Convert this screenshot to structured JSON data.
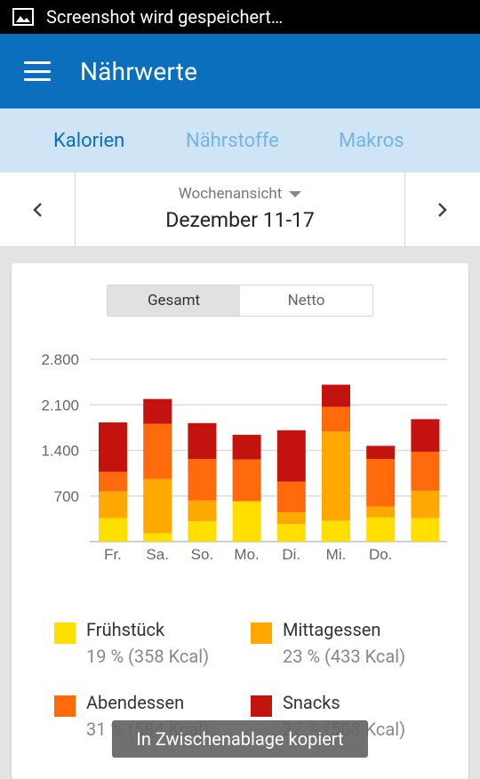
{
  "status_bar": {
    "text": "Screenshot wird gespeichert…",
    "icon": "image-icon"
  },
  "app_bar": {
    "title": "Nährwerte",
    "menu_icon": "hamburger-menu-icon"
  },
  "tabs": [
    {
      "label": "Kalorien",
      "active": true
    },
    {
      "label": "Nährstoffe",
      "active": false
    },
    {
      "label": "Makros",
      "active": false
    }
  ],
  "date_nav": {
    "view_label": "Wochenansicht",
    "range": "Dezember 11-17"
  },
  "toggle": {
    "options": [
      "Gesamt",
      "Netto"
    ],
    "selected": "Gesamt"
  },
  "colors": {
    "fruehstueck": "#ffde00",
    "mittagessen": "#ffa800",
    "abendessen": "#ff6a0c",
    "snacks": "#c4120f",
    "accent": "#0b6fbd"
  },
  "chart_data": {
    "type": "bar",
    "stacked": true,
    "categories": [
      "Fr.",
      "Sa.",
      "So.",
      "Mo.",
      "Di.",
      "Mi.",
      "Do.",
      ""
    ],
    "y_ticks": [
      "2.800",
      "2.100",
      "1.400",
      "700"
    ],
    "ylim": [
      0,
      2800
    ],
    "series": [
      {
        "name": "Frühstück",
        "color": "#ffde00",
        "values": [
          360,
          130,
          310,
          620,
          270,
          320,
          370,
          360
        ]
      },
      {
        "name": "Mittagessen",
        "color": "#ffa800",
        "values": [
          410,
          830,
          320,
          0,
          180,
          1370,
          170,
          420
        ]
      },
      {
        "name": "Abendessen",
        "color": "#ff6a0c",
        "values": [
          300,
          850,
          640,
          640,
          470,
          380,
          730,
          600
        ]
      },
      {
        "name": "Snacks",
        "color": "#c4120f",
        "values": [
          760,
          380,
          550,
          380,
          790,
          340,
          200,
          500
        ]
      }
    ]
  },
  "legend": [
    {
      "name": "Frühstück",
      "value": "19 % (358 Kcal)",
      "color": "#ffde00"
    },
    {
      "name": "Mittagessen",
      "value": "23 % (433 Kcal)",
      "color": "#ffa800"
    },
    {
      "name": "Abendessen",
      "value": "31 % (584 Kcal)",
      "color": "#ff6a0c"
    },
    {
      "name": "Snacks",
      "value": "27 % (508 Kcal)",
      "color": "#c4120f"
    }
  ],
  "toast": {
    "text": "In Zwischenablage kopiert"
  }
}
